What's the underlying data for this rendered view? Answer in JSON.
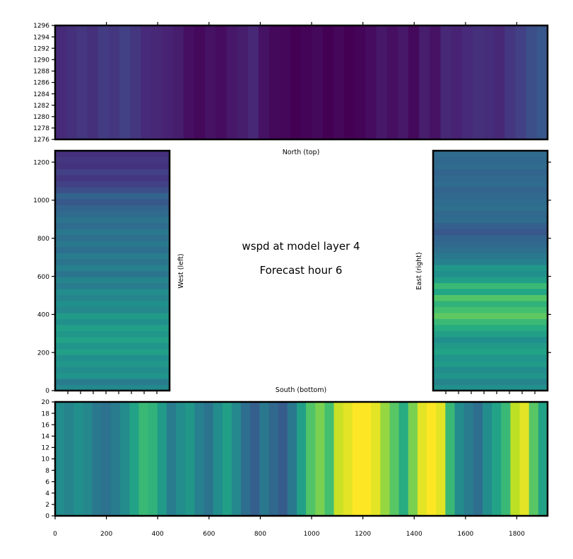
{
  "figure": {
    "title_line1": "wspd at model layer 4",
    "title_line2": "Forecast hour 6"
  },
  "chart_data": [
    {
      "name": "north",
      "type": "heatmap",
      "title": "",
      "xlabel": "North (top)",
      "ylabel": "",
      "xlim": [
        0,
        1920
      ],
      "ylim": [
        1276,
        1296
      ],
      "xticks": [
        200,
        400,
        600,
        800,
        1000,
        1200,
        1400,
        1600,
        1800
      ],
      "show_xtick_labels": false,
      "yticks": [
        1276,
        1278,
        1280,
        1282,
        1284,
        1286,
        1288,
        1290,
        1292,
        1294,
        1296
      ],
      "yticklabels": [
        "1276",
        "1278",
        "1280",
        "1282",
        "1284",
        "1286",
        "1288",
        "1290",
        "1292",
        "1294",
        "1296"
      ],
      "orientation": "vertical-bands",
      "colormap": "viridis",
      "values": [
        0.15,
        0.17,
        0.2,
        0.17,
        0.22,
        0.2,
        0.24,
        0.2,
        0.15,
        0.14,
        0.12,
        0.1,
        0.05,
        0.03,
        0.06,
        0.04,
        0.08,
        0.1,
        0.14,
        0.06,
        0.03,
        0.02,
        0.0,
        0.01,
        0.03,
        0.0,
        0.02,
        0.0,
        0.01,
        0.04,
        0.08,
        0.05,
        0.08,
        0.03,
        0.1,
        0.06,
        0.14,
        0.12,
        0.15,
        0.17,
        0.16,
        0.14,
        0.2,
        0.24,
        0.3,
        0.34
      ]
    },
    {
      "name": "west",
      "type": "heatmap",
      "title": "",
      "xlabel": "",
      "ylabel": "West (left)",
      "xlim": [
        0,
        450
      ],
      "ylim": [
        0,
        1260
      ],
      "yticks": [
        0,
        200,
        400,
        600,
        800,
        1000,
        1200
      ],
      "yticklabels": [
        "0",
        "200",
        "400",
        "600",
        "800",
        "1000",
        "1200"
      ],
      "xticks": [
        50,
        100,
        150,
        200,
        250,
        300,
        350,
        400
      ],
      "show_xtick_labels": false,
      "orientation": "horizontal-bands",
      "colormap": "viridis",
      "values": [
        0.58,
        0.52,
        0.64,
        0.6,
        0.66,
        0.62,
        0.7,
        0.64,
        0.72,
        0.66,
        0.7,
        0.62,
        0.68,
        0.58,
        0.62,
        0.56,
        0.6,
        0.52,
        0.56,
        0.48,
        0.54,
        0.48,
        0.52,
        0.45,
        0.5,
        0.46,
        0.5,
        0.44,
        0.48,
        0.43,
        0.4,
        0.34,
        0.4,
        0.3,
        0.24,
        0.2,
        0.24,
        0.18,
        0.2,
        0.17
      ]
    },
    {
      "name": "east",
      "type": "heatmap",
      "title": "",
      "xlabel": "",
      "ylabel": "East (right)",
      "xlim": [
        0,
        450
      ],
      "ylim": [
        0,
        1260
      ],
      "yticks": [
        200,
        400,
        600,
        800,
        1000,
        1200
      ],
      "xticks": [
        50,
        100,
        150,
        200,
        250,
        300,
        350,
        400
      ],
      "show_xtick_labels": false,
      "show_ytick_labels": false,
      "orientation": "horizontal-bands",
      "colormap": "viridis",
      "values": [
        0.62,
        0.56,
        0.64,
        0.6,
        0.68,
        0.64,
        0.72,
        0.68,
        0.62,
        0.7,
        0.76,
        0.8,
        0.86,
        0.82,
        0.78,
        0.84,
        0.74,
        0.8,
        0.7,
        0.62,
        0.66,
        0.54,
        0.5,
        0.46,
        0.42,
        0.4,
        0.34,
        0.38,
        0.44,
        0.42,
        0.46,
        0.44,
        0.42,
        0.4,
        0.44,
        0.42,
        0.4,
        0.44,
        0.42,
        0.44
      ]
    },
    {
      "name": "south",
      "type": "heatmap",
      "title": "",
      "xlabel": "",
      "xlabel_top": "South (bottom)",
      "ylabel": "",
      "xlim": [
        0,
        1920
      ],
      "ylim": [
        0,
        20
      ],
      "xticks": [
        0,
        200,
        400,
        600,
        800,
        1000,
        1200,
        1400,
        1600,
        1800
      ],
      "xticklabels": [
        "0",
        "200",
        "400",
        "600",
        "800",
        "1000",
        "1200",
        "1400",
        "1600",
        "1800"
      ],
      "yticks": [
        0,
        2,
        4,
        6,
        8,
        10,
        12,
        14,
        16,
        18,
        20
      ],
      "yticklabels": [
        "0",
        "2",
        "4",
        "6",
        "8",
        "10",
        "12",
        "14",
        "16",
        "18",
        "20"
      ],
      "orientation": "vertical-bands",
      "colormap": "viridis",
      "values": [
        0.6,
        0.56,
        0.62,
        0.58,
        0.5,
        0.47,
        0.52,
        0.6,
        0.72,
        0.8,
        0.78,
        0.68,
        0.52,
        0.6,
        0.66,
        0.54,
        0.48,
        0.6,
        0.7,
        0.58,
        0.45,
        0.38,
        0.5,
        0.42,
        0.36,
        0.5,
        0.7,
        0.84,
        0.9,
        0.82,
        0.96,
        0.98,
        1.0,
        1.0,
        0.98,
        0.92,
        0.85,
        0.76,
        0.9,
        0.98,
        1.0,
        0.98,
        0.8,
        0.6,
        0.52,
        0.45,
        0.6,
        0.72,
        0.8,
        0.95,
        0.98,
        0.85,
        0.72
      ]
    }
  ]
}
